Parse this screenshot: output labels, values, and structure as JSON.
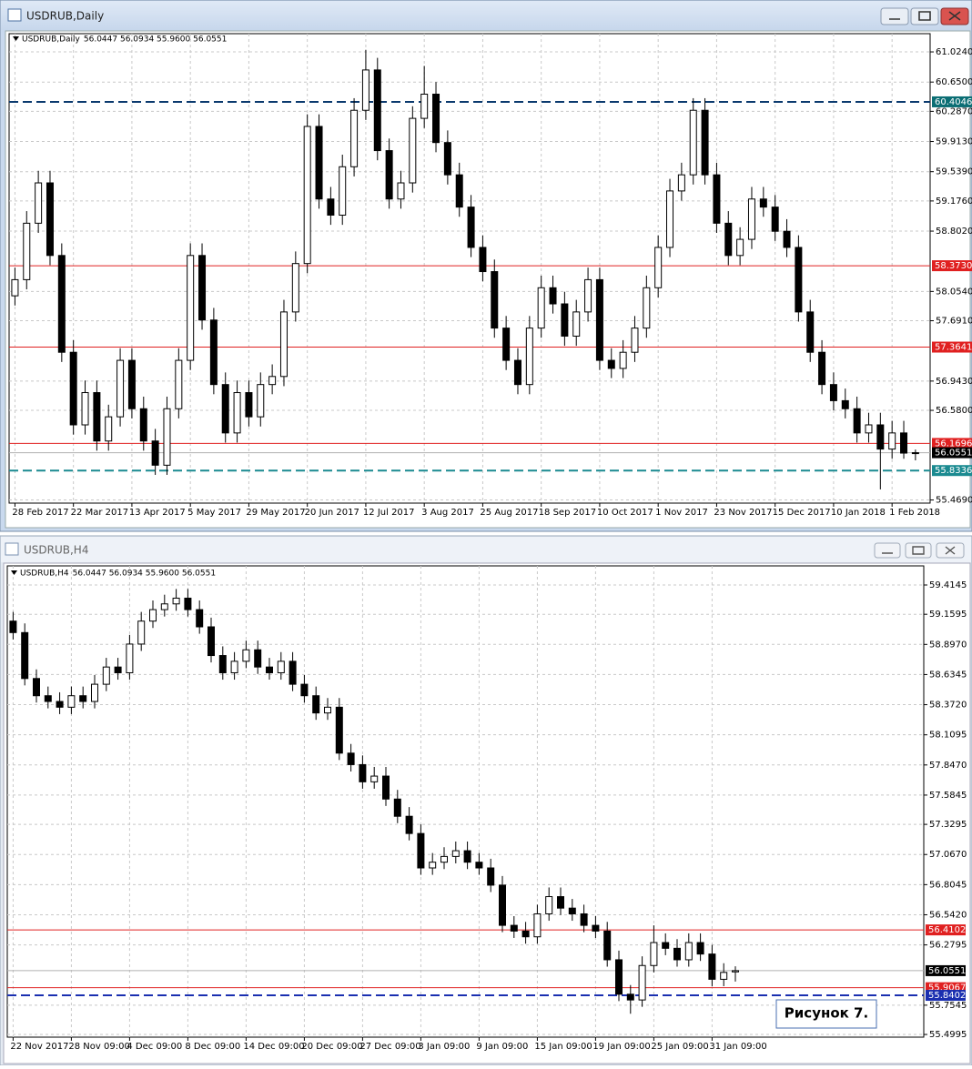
{
  "chart_data": [
    {
      "type": "candlestick",
      "window_title": "USDRUB,Daily",
      "symbol_label": "USDRUB,Daily",
      "ohlc_label": "56.0447 56.0934 55.9600 56.0551",
      "up_color": "#ffffff",
      "down_color": "#000000",
      "grid": true,
      "ylim": [
        55.43,
        61.25
      ],
      "yticks": [
        {
          "value": 61.024,
          "label": "61.0240"
        },
        {
          "value": 60.65,
          "label": "60.6500"
        },
        {
          "value": 60.287,
          "label": "60.2870"
        },
        {
          "value": 59.913,
          "label": "59.9130"
        },
        {
          "value": 59.539,
          "label": "59.5390"
        },
        {
          "value": 59.176,
          "label": "59.1760"
        },
        {
          "value": 58.802,
          "label": "58.8020"
        },
        {
          "value": 58.054,
          "label": "58.0540"
        },
        {
          "value": 57.691,
          "label": "57.6910"
        },
        {
          "value": 56.943,
          "label": "56.9430"
        },
        {
          "value": 56.58,
          "label": "56.5800"
        },
        {
          "value": 55.469,
          "label": "55.4690"
        }
      ],
      "levels": [
        {
          "value": 60.4046,
          "label": "60.4046",
          "color": "#0b3a6e",
          "style": "dashed",
          "badge": "#0b6e74"
        },
        {
          "value": 58.373,
          "label": "58.3730",
          "color": "#e02020",
          "style": "solid",
          "badge": "#e02020"
        },
        {
          "value": 57.3641,
          "label": "57.3641",
          "color": "#e02020",
          "style": "solid",
          "badge": "#e02020"
        },
        {
          "value": 56.1696,
          "label": "56.1696",
          "color": "#e02020",
          "style": "solid",
          "badge": "#e02020"
        },
        {
          "value": 56.0551,
          "label": "56.0551",
          "color": "#b0b0b0",
          "style": "solid",
          "badge": "#000000"
        },
        {
          "value": 55.8336,
          "label": "55.8336",
          "color": "#1a8a90",
          "style": "dashed",
          "badge": "#1a8a90"
        }
      ],
      "categories": [
        "28 Feb 2017",
        null,
        null,
        null,
        null,
        "22 Mar 2017",
        null,
        null,
        null,
        null,
        "13 Apr 2017",
        null,
        null,
        null,
        null,
        "5 May 2017",
        null,
        null,
        null,
        null,
        "29 May 2017",
        null,
        null,
        null,
        null,
        "20 Jun 2017",
        null,
        null,
        null,
        null,
        "12 Jul 2017",
        null,
        null,
        null,
        null,
        "3 Aug 2017",
        null,
        null,
        null,
        null,
        "25 Aug 2017",
        null,
        null,
        null,
        null,
        "18 Sep 2017",
        null,
        null,
        null,
        null,
        "10 Oct 2017",
        null,
        null,
        null,
        null,
        "1 Nov 2017",
        null,
        null,
        null,
        null,
        "23 Nov 2017",
        null,
        null,
        null,
        null,
        "15 Dec 2017",
        null,
        null,
        null,
        null,
        "10 Jan 2018",
        null,
        null,
        null,
        null,
        "1 Feb 2018",
        null,
        null
      ],
      "ohlc": [
        [
          58.0,
          58.35,
          57.88,
          58.2
        ],
        [
          58.2,
          59.05,
          58.08,
          58.9
        ],
        [
          58.9,
          59.55,
          58.78,
          59.4
        ],
        [
          59.4,
          59.55,
          58.38,
          58.5
        ],
        [
          58.5,
          58.65,
          57.18,
          57.3
        ],
        [
          57.3,
          57.45,
          56.28,
          56.4
        ],
        [
          56.4,
          56.95,
          56.28,
          56.8
        ],
        [
          56.8,
          56.95,
          56.08,
          56.2
        ],
        [
          56.2,
          56.65,
          56.08,
          56.5
        ],
        [
          56.5,
          57.35,
          56.38,
          57.2
        ],
        [
          57.2,
          57.35,
          56.48,
          56.6
        ],
        [
          56.6,
          56.75,
          56.08,
          56.2
        ],
        [
          56.2,
          56.35,
          55.78,
          55.9
        ],
        [
          55.9,
          56.75,
          55.78,
          56.6
        ],
        [
          56.6,
          57.35,
          56.48,
          57.2
        ],
        [
          57.2,
          58.65,
          57.08,
          58.5
        ],
        [
          58.5,
          58.65,
          57.58,
          57.7
        ],
        [
          57.7,
          57.85,
          56.78,
          56.9
        ],
        [
          56.9,
          57.05,
          56.18,
          56.3
        ],
        [
          56.3,
          56.95,
          56.18,
          56.8
        ],
        [
          56.8,
          56.95,
          56.38,
          56.5
        ],
        [
          56.5,
          57.05,
          56.38,
          56.9
        ],
        [
          56.9,
          57.15,
          56.78,
          57.0
        ],
        [
          57.0,
          57.95,
          56.88,
          57.8
        ],
        [
          57.8,
          58.55,
          57.68,
          58.4
        ],
        [
          58.4,
          60.25,
          58.28,
          60.1
        ],
        [
          60.1,
          60.25,
          59.08,
          59.2
        ],
        [
          59.2,
          59.35,
          58.88,
          59.0
        ],
        [
          59.0,
          59.75,
          58.88,
          59.6
        ],
        [
          59.6,
          60.45,
          59.48,
          60.3
        ],
        [
          60.3,
          61.05,
          60.18,
          60.8
        ],
        [
          60.8,
          60.95,
          59.68,
          59.8
        ],
        [
          59.8,
          59.95,
          59.08,
          59.2
        ],
        [
          59.2,
          59.55,
          59.08,
          59.4
        ],
        [
          59.4,
          60.35,
          59.28,
          60.2
        ],
        [
          60.2,
          60.85,
          60.08,
          60.5
        ],
        [
          60.5,
          60.65,
          59.78,
          59.9
        ],
        [
          59.9,
          60.05,
          59.38,
          59.5
        ],
        [
          59.5,
          59.65,
          58.98,
          59.1
        ],
        [
          59.1,
          59.25,
          58.48,
          58.6
        ],
        [
          58.6,
          58.75,
          58.18,
          58.3
        ],
        [
          58.3,
          58.45,
          57.48,
          57.6
        ],
        [
          57.6,
          57.75,
          57.08,
          57.2
        ],
        [
          57.2,
          57.35,
          56.78,
          56.9
        ],
        [
          56.9,
          57.75,
          56.78,
          57.6
        ],
        [
          57.6,
          58.25,
          57.48,
          58.1
        ],
        [
          58.1,
          58.25,
          57.78,
          57.9
        ],
        [
          57.9,
          58.05,
          57.38,
          57.5
        ],
        [
          57.5,
          57.95,
          57.38,
          57.8
        ],
        [
          57.8,
          58.35,
          57.68,
          58.2
        ],
        [
          58.2,
          58.35,
          57.08,
          57.2
        ],
        [
          57.2,
          57.35,
          56.98,
          57.1
        ],
        [
          57.1,
          57.45,
          56.98,
          57.3
        ],
        [
          57.3,
          57.75,
          57.18,
          57.6
        ],
        [
          57.6,
          58.25,
          57.48,
          58.1
        ],
        [
          58.1,
          58.75,
          57.98,
          58.6
        ],
        [
          58.6,
          59.45,
          58.48,
          59.3
        ],
        [
          59.3,
          59.65,
          59.18,
          59.5
        ],
        [
          59.5,
          60.45,
          59.38,
          60.3
        ],
        [
          60.3,
          60.45,
          59.38,
          59.5
        ],
        [
          59.5,
          59.65,
          58.78,
          58.9
        ],
        [
          58.9,
          59.05,
          58.38,
          58.5
        ],
        [
          58.5,
          58.85,
          58.38,
          58.7
        ],
        [
          58.7,
          59.35,
          58.58,
          59.2
        ],
        [
          59.2,
          59.35,
          58.98,
          59.1
        ],
        [
          59.1,
          59.25,
          58.68,
          58.8
        ],
        [
          58.8,
          58.95,
          58.48,
          58.6
        ],
        [
          58.6,
          58.75,
          57.68,
          57.8
        ],
        [
          57.8,
          57.95,
          57.18,
          57.3
        ],
        [
          57.3,
          57.45,
          56.78,
          56.9
        ],
        [
          56.9,
          57.05,
          56.58,
          56.7
        ],
        [
          56.7,
          56.85,
          56.48,
          56.6
        ],
        [
          56.6,
          56.75,
          56.18,
          56.3
        ],
        [
          56.3,
          56.55,
          56.18,
          56.4
        ],
        [
          56.4,
          56.55,
          55.6,
          56.1
        ],
        [
          56.1,
          56.45,
          55.98,
          56.3
        ],
        [
          56.3,
          56.45,
          55.98,
          56.05
        ],
        [
          56.0447,
          56.0934,
          55.96,
          56.0551
        ]
      ]
    },
    {
      "type": "candlestick",
      "window_title": "USDRUB,H4",
      "symbol_label": "USDRUB,H4",
      "ohlc_label": "56.0447 56.0934 55.9600 56.0551",
      "up_color": "#ffffff",
      "down_color": "#000000",
      "grid": true,
      "ylim": [
        55.476,
        59.581
      ],
      "yticks": [
        59.4145,
        59.1595,
        {
          "value": 58.897,
          "label": "58.8970"
        },
        58.6345,
        {
          "value": 58.372,
          "label": "58.3720"
        },
        58.1095,
        {
          "value": 57.847,
          "label": "57.8470"
        },
        57.5845,
        57.3295,
        {
          "value": 57.067,
          "label": "57.0670"
        },
        56.8045,
        {
          "value": 56.542,
          "label": "56.5420"
        },
        56.2795,
        55.7545,
        55.4995
      ],
      "levels": [
        {
          "value": 56.4102,
          "label": "56.4102",
          "color": "#e02020",
          "style": "solid",
          "badge": "#e02020"
        },
        {
          "value": 56.0551,
          "label": "56.0551",
          "color": "#b0b0b0",
          "style": "solid",
          "badge": "#000000"
        },
        {
          "value": 55.9067,
          "label": "55.9067",
          "color": "#e02020",
          "style": "solid",
          "badge": "#e02020"
        },
        {
          "value": 55.8402,
          "label": "55.8402",
          "color": "#1a2fb0",
          "style": "dashed",
          "badge": "#1a2fb0"
        }
      ],
      "annotation": "Рисунок 7.",
      "categories": [
        "22 Nov 2017",
        null,
        null,
        null,
        null,
        "28 Nov 09:00",
        null,
        null,
        null,
        null,
        "4 Dec 09:00",
        null,
        null,
        null,
        null,
        "8 Dec 09:00",
        null,
        null,
        null,
        null,
        "14 Dec 09:00",
        null,
        null,
        null,
        null,
        "20 Dec 09:00",
        null,
        null,
        null,
        null,
        "27 Dec 09:00",
        null,
        null,
        null,
        null,
        "3 Jan 09:00",
        null,
        null,
        null,
        null,
        "9 Jan 09:00",
        null,
        null,
        null,
        null,
        "15 Jan 09:00",
        null,
        null,
        null,
        null,
        "19 Jan 09:00",
        null,
        null,
        null,
        null,
        "25 Jan 09:00",
        null,
        null,
        null,
        null,
        "31 Jan 09:00",
        null,
        null
      ],
      "ohlc": [
        [
          59.1,
          59.18,
          58.94,
          59.0
        ],
        [
          59.0,
          59.08,
          58.54,
          58.6
        ],
        [
          58.6,
          58.68,
          58.39,
          58.45
        ],
        [
          58.45,
          58.53,
          58.34,
          58.4
        ],
        [
          58.4,
          58.48,
          58.29,
          58.35
        ],
        [
          58.35,
          58.53,
          58.29,
          58.45
        ],
        [
          58.45,
          58.53,
          58.34,
          58.4
        ],
        [
          58.4,
          58.63,
          58.34,
          58.55
        ],
        [
          58.55,
          58.78,
          58.49,
          58.7
        ],
        [
          58.7,
          58.78,
          58.59,
          58.65
        ],
        [
          58.65,
          58.98,
          58.59,
          58.9
        ],
        [
          58.9,
          59.18,
          58.84,
          59.1
        ],
        [
          59.1,
          59.28,
          59.04,
          59.2
        ],
        [
          59.2,
          59.33,
          59.14,
          59.25
        ],
        [
          59.25,
          59.38,
          59.19,
          59.3
        ],
        [
          59.3,
          59.38,
          59.14,
          59.2
        ],
        [
          59.2,
          59.28,
          58.99,
          59.05
        ],
        [
          59.05,
          59.13,
          58.74,
          58.8
        ],
        [
          58.8,
          58.88,
          58.59,
          58.65
        ],
        [
          58.65,
          58.83,
          58.59,
          58.75
        ],
        [
          58.75,
          58.93,
          58.69,
          58.85
        ],
        [
          58.85,
          58.93,
          58.64,
          58.7
        ],
        [
          58.7,
          58.78,
          58.59,
          58.65
        ],
        [
          58.65,
          58.83,
          58.59,
          58.75
        ],
        [
          58.75,
          58.83,
          58.49,
          58.55
        ],
        [
          58.55,
          58.63,
          58.39,
          58.45
        ],
        [
          58.45,
          58.53,
          58.24,
          58.3
        ],
        [
          58.3,
          58.43,
          58.24,
          58.35
        ],
        [
          58.35,
          58.43,
          57.89,
          57.95
        ],
        [
          57.95,
          58.03,
          57.79,
          57.85
        ],
        [
          57.85,
          57.93,
          57.64,
          57.7
        ],
        [
          57.7,
          57.83,
          57.64,
          57.75
        ],
        [
          57.75,
          57.83,
          57.49,
          57.55
        ],
        [
          57.55,
          57.63,
          57.34,
          57.4
        ],
        [
          57.4,
          57.48,
          57.19,
          57.25
        ],
        [
          57.25,
          57.33,
          56.89,
          56.95
        ],
        [
          56.95,
          57.08,
          56.89,
          57.0
        ],
        [
          57.0,
          57.13,
          56.94,
          57.05
        ],
        [
          57.05,
          57.18,
          56.99,
          57.1
        ],
        [
          57.1,
          57.18,
          56.94,
          57.0
        ],
        [
          57.0,
          57.08,
          56.89,
          56.95
        ],
        [
          56.95,
          57.03,
          56.74,
          56.8
        ],
        [
          56.8,
          56.88,
          56.39,
          56.45
        ],
        [
          56.45,
          56.53,
          56.34,
          56.4
        ],
        [
          56.4,
          56.48,
          56.29,
          56.35
        ],
        [
          56.35,
          56.63,
          56.29,
          56.55
        ],
        [
          56.55,
          56.78,
          56.49,
          56.7
        ],
        [
          56.7,
          56.78,
          56.54,
          56.6
        ],
        [
          56.6,
          56.68,
          56.49,
          56.55
        ],
        [
          56.55,
          56.63,
          56.39,
          56.45
        ],
        [
          56.45,
          56.53,
          56.34,
          56.4
        ],
        [
          56.4,
          56.48,
          56.09,
          56.15
        ],
        [
          56.15,
          56.23,
          55.79,
          55.85
        ],
        [
          55.85,
          55.93,
          55.68,
          55.8
        ],
        [
          55.8,
          56.18,
          55.74,
          56.1
        ],
        [
          56.1,
          56.45,
          56.04,
          56.3
        ],
        [
          56.3,
          56.38,
          56.19,
          56.25
        ],
        [
          56.25,
          56.33,
          56.09,
          56.15
        ],
        [
          56.15,
          56.38,
          56.09,
          56.3
        ],
        [
          56.3,
          56.38,
          56.14,
          56.2
        ],
        [
          56.2,
          56.28,
          55.92,
          55.98
        ],
        [
          55.98,
          56.12,
          55.92,
          56.04
        ],
        [
          56.0447,
          56.0934,
          55.96,
          56.0551
        ]
      ]
    }
  ]
}
